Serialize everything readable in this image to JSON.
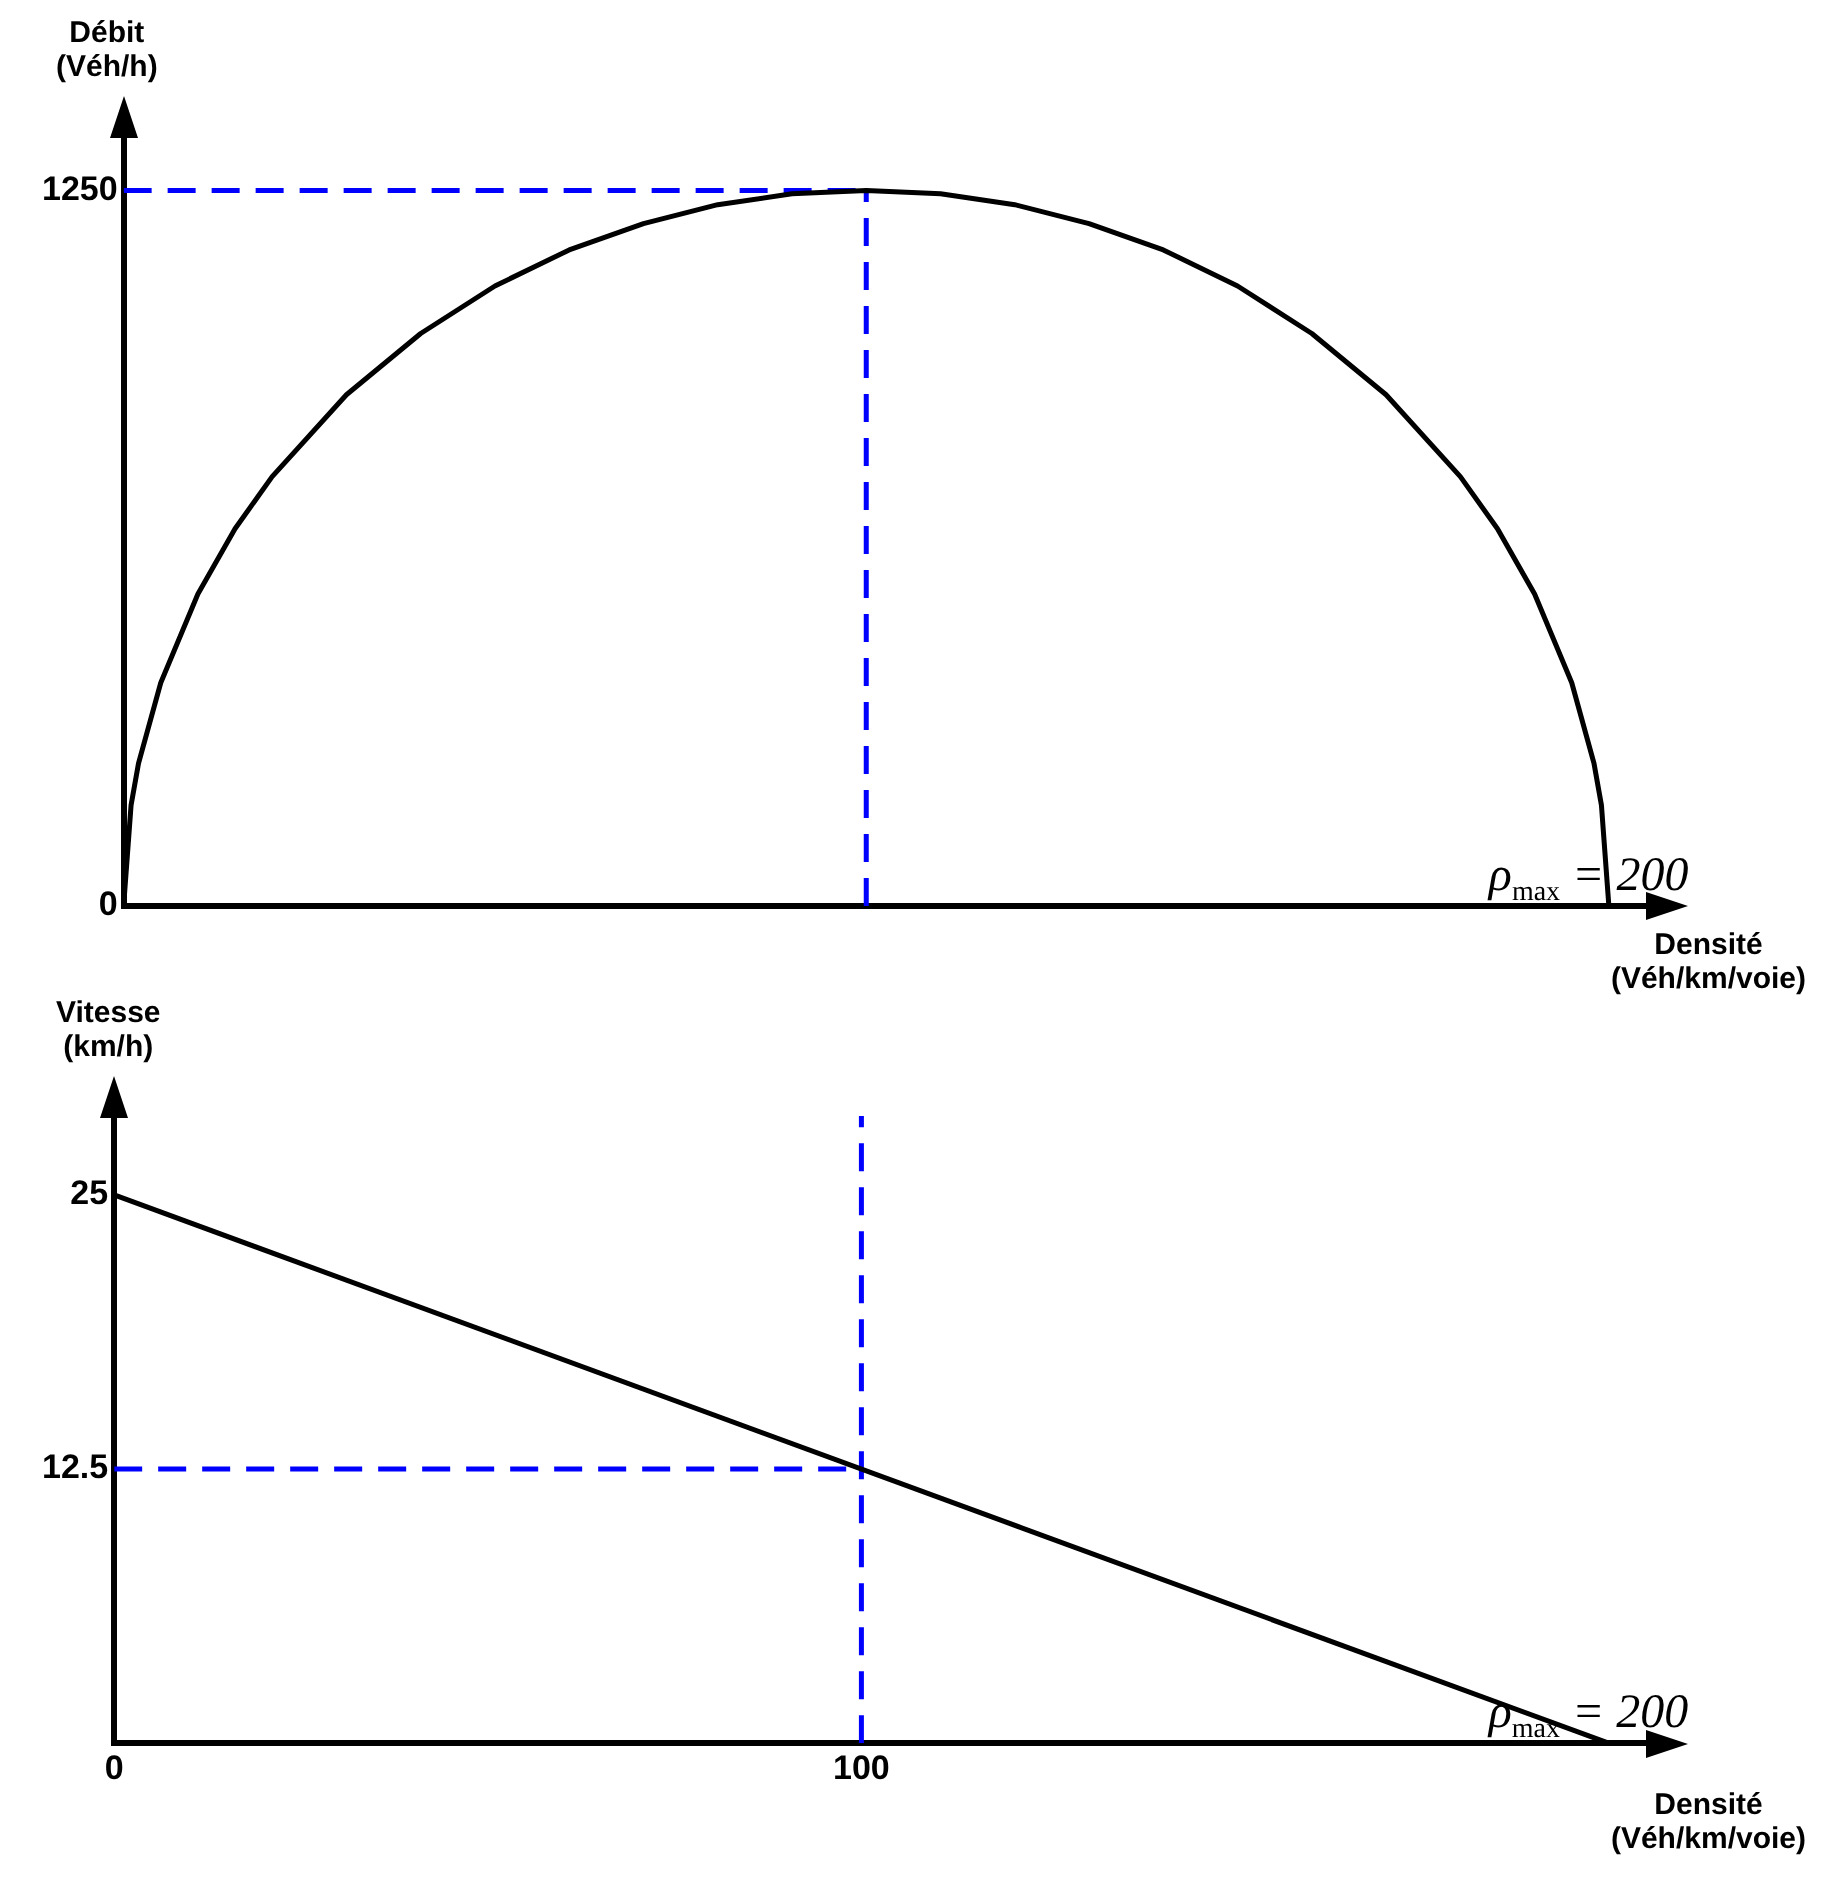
{
  "chart_data": [
    {
      "type": "line",
      "ylabel": "Débit\n(Véh/h)",
      "xlabel": "Densité\n(Véh/km/voie)",
      "xlim": [
        0,
        205
      ],
      "ylim": [
        0,
        1345
      ],
      "yticks": [
        0,
        1250
      ],
      "tick_labels": "y",
      "grid": false,
      "legend": false,
      "marker": "none",
      "series": [
        {
          "color": "#000000",
          "line_style": "solid",
          "x": [
            0,
            1,
            2,
            5,
            10,
            15,
            20,
            30,
            40,
            50,
            60,
            70,
            80,
            90,
            100,
            110,
            120,
            130,
            140,
            150,
            160,
            170,
            180,
            185,
            190,
            195,
            198,
            199,
            200
          ],
          "values": [
            0,
            176,
            249,
            390,
            545,
            659,
            750,
            893,
            1000,
            1083,
            1146,
            1192,
            1225,
            1244,
            1250,
            1244,
            1225,
            1192,
            1146,
            1083,
            1000,
            893,
            750,
            659,
            545,
            390,
            249,
            176,
            0
          ]
        },
        {
          "color": "#0000ff",
          "line_style": "dashed",
          "x": [
            0,
            100
          ],
          "values": [
            1250,
            1250
          ]
        },
        {
          "color": "#0000ff",
          "line_style": "dashed",
          "x": [
            100,
            100
          ],
          "values": [
            0,
            1250
          ]
        }
      ],
      "annotations": [
        {
          "text": "ρ$_{max}$ = 200",
          "x": 200,
          "y": 0
        }
      ]
    },
    {
      "type": "line",
      "ylabel": "Vitesse\n(km/h)",
      "xlabel": "Densité\n(Véh/km/voie)",
      "xlim": [
        0,
        205
      ],
      "ylim": [
        0,
        28.6
      ],
      "xticks": [
        0,
        100
      ],
      "yticks": [
        12.5,
        25
      ],
      "grid": false,
      "legend": false,
      "marker": "none",
      "series": [
        {
          "color": "#000000",
          "line_style": "solid",
          "x": [
            0,
            200
          ],
          "values": [
            25,
            0
          ]
        },
        {
          "color": "#0000ff",
          "line_style": "dashed",
          "x": [
            0,
            100
          ],
          "values": [
            12.5,
            12.5
          ]
        },
        {
          "color": "#0000ff",
          "line_style": "dashed",
          "x": [
            100,
            100
          ],
          "values": [
            0,
            28.6
          ]
        }
      ],
      "annotations": [
        {
          "text": "ρ$_{max}$ = 200",
          "x": 200,
          "y": 0
        }
      ]
    }
  ]
}
